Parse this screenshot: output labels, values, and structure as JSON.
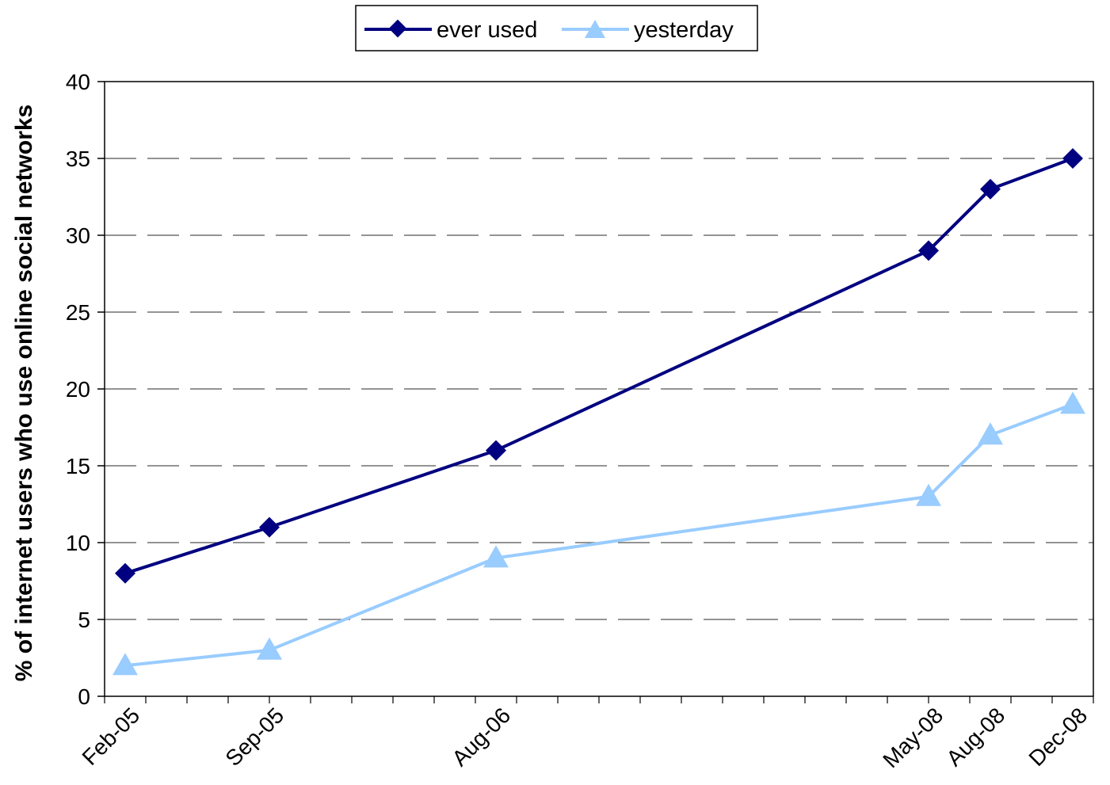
{
  "chart_data": {
    "type": "line",
    "x": [
      "2005-02",
      "2005-09",
      "2006-08",
      "2008-05",
      "2008-08",
      "2008-12"
    ],
    "x_tick_labels": [
      "Feb-05",
      "Sep-05",
      "Aug-06",
      "May-08",
      "Aug-08",
      "Dec-08"
    ],
    "xlim": [
      "2005-01",
      "2009-01"
    ],
    "series": [
      {
        "name": "ever used",
        "values": [
          8,
          11,
          16,
          29,
          33,
          35
        ],
        "color": "#000080",
        "marker": "diamond"
      },
      {
        "name": "yesterday",
        "values": [
          2,
          3,
          9,
          13,
          17,
          19
        ],
        "color": "#99ccff",
        "marker": "triangle"
      }
    ],
    "xlabel": "",
    "ylabel": "% of internet users who use online social networks",
    "ylim": [
      0,
      40
    ],
    "yticks": [
      0,
      5,
      10,
      15,
      20,
      25,
      30,
      35,
      40
    ],
    "grid": "horizontal-dashed",
    "legend_position": "top-center"
  }
}
